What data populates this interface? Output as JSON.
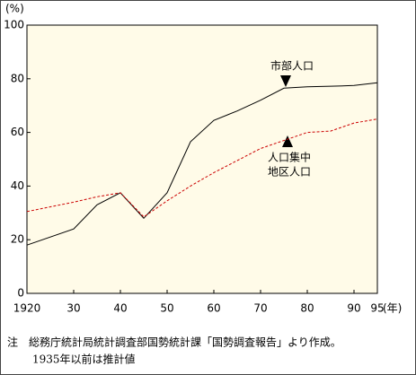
{
  "chart_data": {
    "type": "line",
    "y_label": "(%)",
    "x_label": "(年)",
    "x": [
      1920,
      1930,
      1935,
      1940,
      1945,
      1950,
      1955,
      1960,
      1965,
      1970,
      1975,
      1980,
      1985,
      1990,
      1995
    ],
    "series": [
      {
        "name": "市部人口",
        "color": "#000000",
        "line_style": "solid",
        "values": [
          18,
          24,
          33,
          37.5,
          28,
          37.5,
          56.5,
          64.5,
          68,
          72,
          76.5,
          77,
          77.2,
          77.5,
          78.5
        ]
      },
      {
        "name": "人口集中地区人口",
        "color": "#cc0000",
        "line_style": "dashed",
        "values": [
          30.5,
          34,
          36,
          37.5,
          28.5,
          34.5,
          40,
          45,
          49.5,
          54,
          57,
          60,
          60.5,
          63.5,
          65
        ]
      }
    ],
    "annotations": [
      [
        "市部人口"
      ],
      [
        "人口集中",
        "地区人口"
      ]
    ],
    "xlim": [
      1920,
      1995
    ],
    "xticks": [
      1920,
      {
        "value": 1930,
        "label": "30"
      },
      {
        "value": 1940,
        "label": "40"
      },
      {
        "value": 1950,
        "label": "50"
      },
      {
        "value": 1960,
        "label": "60"
      },
      {
        "value": 1970,
        "label": "70"
      },
      {
        "value": 1980,
        "label": "80"
      },
      {
        "value": 1990,
        "label": "90"
      },
      {
        "value": 1995,
        "label": "95"
      }
    ],
    "ylim": [
      0,
      100
    ],
    "yticks": [
      0,
      20,
      40,
      60,
      80,
      100
    ],
    "grid": false,
    "note": [
      "注　総務庁統計局統計調査部国勢統計課「国勢調査報告」より作成。",
      "1935年以前は推計値"
    ]
  }
}
